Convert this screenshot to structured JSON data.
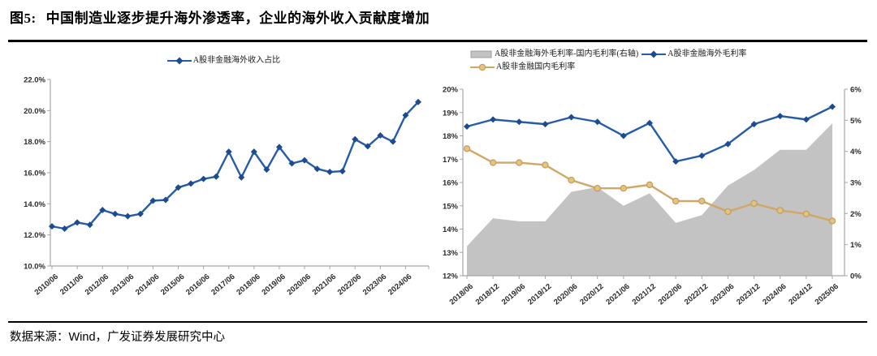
{
  "page": {
    "title": {
      "prefix": "图5:",
      "text": "中国制造业逐步提升海外渗透率，企业的海外收入贡献度增加"
    },
    "footer": {
      "label": "数据来源：",
      "source": "Wind",
      "suffix": "，广发证券发展研究中心"
    }
  },
  "colors": {
    "blue_line": "#245CA7",
    "blue_marker": "#1C4B8F",
    "gold_line": "#D1A765",
    "gold_marker_fill": "#E2C389",
    "gold_marker_stroke": "#C79C55",
    "gray_area": "#C3C3C3",
    "gray_area_edge": "#9E9E9E",
    "axis": "#A6A6A6",
    "rule": "#000000"
  },
  "chart_data": [
    {
      "id": "overseas-revenue-share",
      "type": "line",
      "legend": [
        "A股非金融海外收入占比"
      ],
      "categories": [
        "2010/06",
        "2010/12",
        "2011/06",
        "2011/12",
        "2012/06",
        "2012/12",
        "2013/06",
        "2013/12",
        "2014/06",
        "2014/12",
        "2015/06",
        "2015/12",
        "2016/06",
        "2016/12",
        "2017/06",
        "2017/12",
        "2018/06",
        "2018/12",
        "2019/06",
        "2019/12",
        "2020/06",
        "2020/12",
        "2021/06",
        "2021/12",
        "2022/06",
        "2022/12",
        "2023/06",
        "2023/12",
        "2024/06",
        "2024/12"
      ],
      "values": [
        12.55,
        12.4,
        12.8,
        12.65,
        13.6,
        13.35,
        13.2,
        13.35,
        14.2,
        14.25,
        15.05,
        15.3,
        15.6,
        15.75,
        17.35,
        15.7,
        17.35,
        16.2,
        17.65,
        16.6,
        16.8,
        16.25,
        16.05,
        16.1,
        18.15,
        17.7,
        18.4,
        18.0,
        19.7,
        20.55
      ],
      "ylim": [
        10,
        22
      ],
      "y_tick_labels": [
        "22.0%",
        "20.0%",
        "18.0%",
        "16.0%",
        "14.0%",
        "12.0%",
        "10.0%"
      ],
      "x_tick_labels": [
        "2010/06",
        "2011/06",
        "2012/06",
        "2013/06",
        "2014/06",
        "2015/06",
        "2016/06",
        "2017/06",
        "2018/06",
        "2019/06",
        "2020/06",
        "2021/06",
        "2022/06",
        "2023/06",
        "2024/06"
      ],
      "grid": false,
      "legend_position": "top-center",
      "marker": "diamond"
    },
    {
      "id": "overseas-vs-domestic-gross-margin",
      "type": "combo",
      "categories": [
        "2018/06",
        "2018/12",
        "2019/06",
        "2019/12",
        "2020/06",
        "2020/12",
        "2021/06",
        "2021/12",
        "2022/06",
        "2022/12",
        "2023/06",
        "2023/12",
        "2024/06",
        "2024/12",
        "2025/06"
      ],
      "series": [
        {
          "name": "A股非金融海外毛利率-国内毛利率(右轴)",
          "type": "area",
          "axis": "right",
          "marker": "none",
          "values": [
            0.95,
            1.85,
            1.75,
            1.75,
            2.7,
            2.85,
            2.25,
            2.65,
            1.7,
            1.95,
            2.9,
            3.4,
            4.05,
            4.05,
            4.9
          ]
        },
        {
          "name": "A股非金融海外毛利率",
          "type": "line",
          "axis": "left",
          "marker": "diamond",
          "values": [
            18.4,
            18.7,
            18.6,
            18.5,
            18.8,
            18.6,
            18.0,
            18.55,
            16.9,
            17.15,
            17.65,
            18.5,
            18.85,
            18.7,
            19.25
          ]
        },
        {
          "name": "A股非金融国内毛利率",
          "type": "line",
          "axis": "left",
          "marker": "circle",
          "values": [
            17.45,
            16.85,
            16.85,
            16.75,
            16.1,
            15.75,
            15.75,
            15.9,
            15.2,
            15.2,
            14.75,
            15.1,
            14.8,
            14.65,
            14.35
          ]
        }
      ],
      "ylim_left": [
        12,
        20
      ],
      "ylim_right": [
        0,
        6
      ],
      "y_tick_labels_left": [
        "20%",
        "19%",
        "18%",
        "17%",
        "16%",
        "15%",
        "14%",
        "13%",
        "12%"
      ],
      "y_tick_labels_right": [
        "6%",
        "5%",
        "4%",
        "3%",
        "2%",
        "1%",
        "0%"
      ],
      "x_tick_labels": [
        "2018/06",
        "2018/12",
        "2019/06",
        "2019/12",
        "2020/06",
        "2020/12",
        "2021/06",
        "2021/12",
        "2022/06",
        "2022/12",
        "2023/06",
        "2023/12",
        "2024/06",
        "2024/12",
        "2025/06"
      ],
      "grid": false,
      "legend_position": "top-left"
    }
  ]
}
